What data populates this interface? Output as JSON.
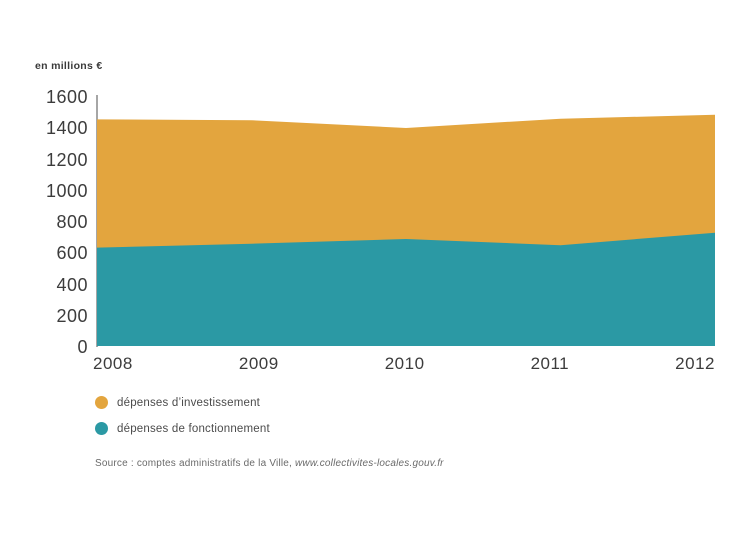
{
  "chart_data": {
    "type": "area",
    "stacked": true,
    "unit_label": "en millions €",
    "x": [
      "2008",
      "2009",
      "2010",
      "2011",
      "2012"
    ],
    "series": [
      {
        "name": "dépenses de fonctionnement",
        "color": "#2b99a4",
        "values": [
          630,
          655,
          685,
          645,
          725
        ]
      },
      {
        "name": "dépenses d’investissement",
        "color": "#e3a53e",
        "values": [
          820,
          790,
          710,
          810,
          755
        ]
      }
    ],
    "stacked_totals": [
      1450,
      1445,
      1395,
      1455,
      1480
    ],
    "ylim": [
      0,
      1600
    ],
    "yticks": [
      1600,
      1400,
      1200,
      1000,
      800,
      600,
      400,
      200,
      0
    ],
    "grid": false,
    "legend_position": "bottom-left",
    "axis_line_color": "#a6a6a6"
  },
  "legend": {
    "items": [
      {
        "label": "dépenses d’investissement",
        "color": "#e3a53e"
      },
      {
        "label": "dépenses de fonctionnement",
        "color": "#2b99a4"
      }
    ]
  },
  "source": {
    "prefix": "Source : comptes administratifs de la Ville, ",
    "link": "www.collectivites-locales.gouv.fr"
  }
}
